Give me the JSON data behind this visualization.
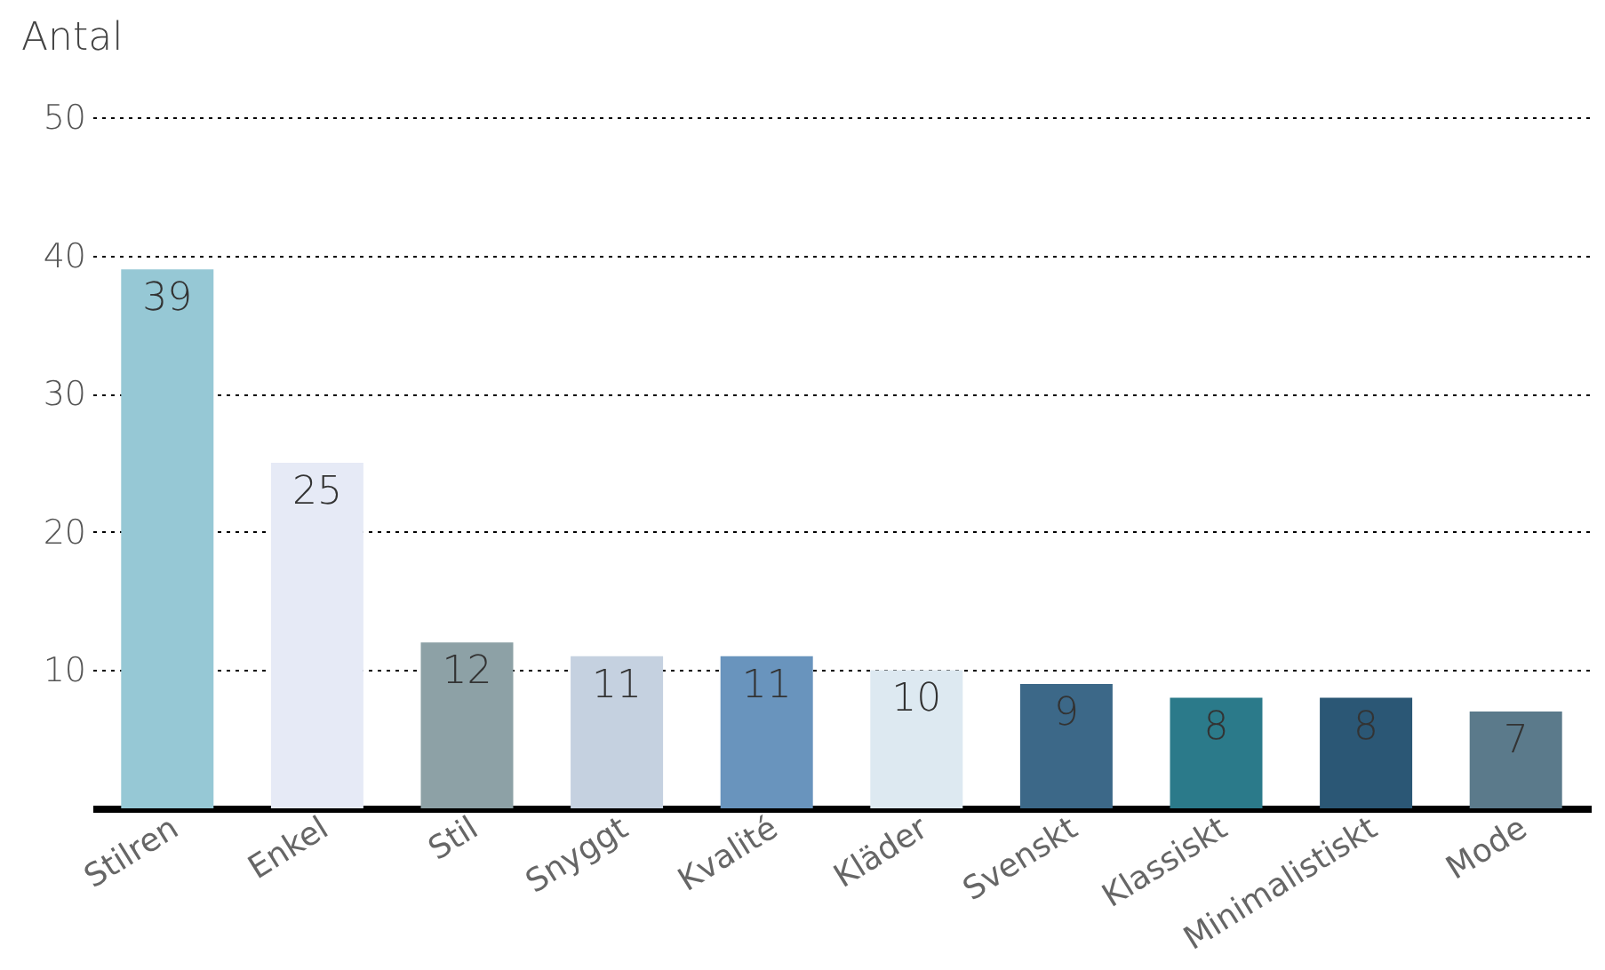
{
  "chart_data": {
    "type": "bar",
    "ylabel": "Antal",
    "categories": [
      "Stilren",
      "Enkel",
      "Stil",
      "Snyggt",
      "Kvalité",
      "Kläder",
      "Svenskt",
      "Klassiskt",
      "Minimalistiskt",
      "Mode"
    ],
    "values": [
      39,
      25,
      12,
      11,
      11,
      10,
      9,
      8,
      8,
      7
    ],
    "colors": [
      "#96c8d5",
      "#e6eaf6",
      "#8da1a6",
      "#c5d1e0",
      "#6994bd",
      "#dde9f1",
      "#3c6888",
      "#2b7a8a",
      "#2b5775",
      "#5b7a8b"
    ],
    "ylim": [
      0,
      50
    ],
    "yticks": [
      10,
      20,
      30,
      40,
      50
    ],
    "grid": "y",
    "data_labels": true
  }
}
